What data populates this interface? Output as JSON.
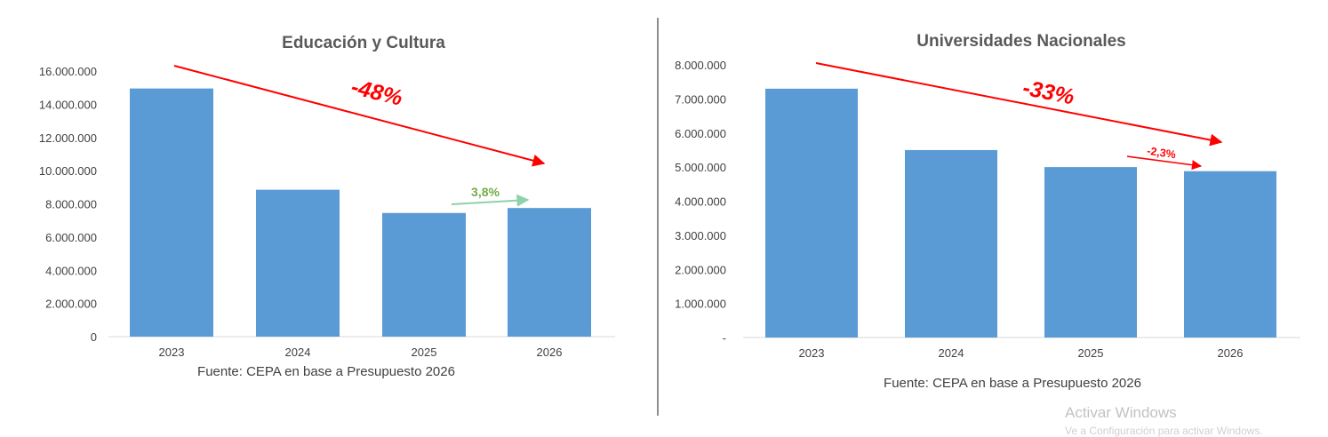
{
  "chart_data": [
    {
      "type": "bar",
      "title": "Educación y Cultura",
      "categories": [
        "2023",
        "2024",
        "2025",
        "2026"
      ],
      "values": [
        14950000,
        8850000,
        7450000,
        7750000
      ],
      "ylim": [
        0,
        16000000
      ],
      "yticks": [
        "0",
        "2.000.000",
        "4.000.000",
        "6.000.000",
        "8.000.000",
        "10.000.000",
        "12.000.000",
        "14.000.000",
        "16.000.000"
      ],
      "bar_color": "#5b9bd5",
      "source": "Fuente: CEPA en base a Presupuesto 2026",
      "annotations": [
        {
          "text": "-48%",
          "color": "#ff0000"
        },
        {
          "text": "3,8%",
          "color": "#70ad47"
        }
      ]
    },
    {
      "type": "bar",
      "title": "Universidades Nacionales",
      "categories": [
        "2023",
        "2024",
        "2025",
        "2026"
      ],
      "values": [
        7300000,
        5500000,
        5000000,
        4880000
      ],
      "ylim": [
        0,
        8000000
      ],
      "yticks": [
        "-",
        "1.000.000",
        "2.000.000",
        "3.000.000",
        "4.000.000",
        "5.000.000",
        "6.000.000",
        "7.000.000",
        "8.000.000"
      ],
      "bar_color": "#5b9bd5",
      "source": "Fuente: CEPA en base a Presupuesto 2026",
      "annotations": [
        {
          "text": "-33%",
          "color": "#ff0000"
        },
        {
          "text": "-2,3%",
          "color": "#ff0000"
        }
      ]
    }
  ],
  "watermark": {
    "line1": "Activar Windows",
    "line2": "Ve a Configuración para activar Windows."
  }
}
